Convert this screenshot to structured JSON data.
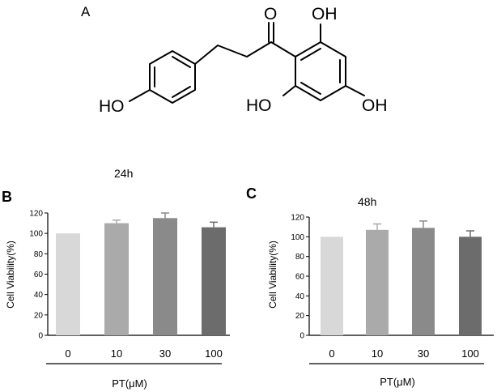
{
  "panel_labels": {
    "a": "A",
    "b": "B",
    "c": "C"
  },
  "molecule": {
    "oh_top": "OH",
    "oxo": "O",
    "ho_left": "HO",
    "ho_bottom": "HO",
    "oh_right": "OH"
  },
  "chart_data": [
    {
      "type": "bar",
      "title": "24h",
      "xlabel": "PT(μM)",
      "ylabel": "Cell Viability(%)",
      "categories": [
        "0",
        "10",
        "30",
        "100"
      ],
      "values": [
        100,
        110,
        115,
        106
      ],
      "errors": [
        0,
        3,
        5,
        5
      ],
      "yticks": [
        0,
        20,
        40,
        60,
        80,
        100,
        120
      ],
      "ylim": [
        0,
        120
      ],
      "colors": [
        "#d8d8d8",
        "#aaaaaa",
        "#8a8a8a",
        "#6c6c6c"
      ],
      "grid": false
    },
    {
      "type": "bar",
      "title": "48h",
      "xlabel": "PT(μM)",
      "ylabel": "Cell Viability(%)",
      "categories": [
        "0",
        "10",
        "30",
        "100"
      ],
      "values": [
        100,
        107,
        109,
        100
      ],
      "errors": [
        0,
        6,
        7,
        6
      ],
      "yticks": [
        0,
        20,
        40,
        60,
        80,
        100,
        120
      ],
      "ylim": [
        0,
        120
      ],
      "colors": [
        "#d8d8d8",
        "#aaaaaa",
        "#8a8a8a",
        "#6c6c6c"
      ],
      "grid": false
    }
  ]
}
